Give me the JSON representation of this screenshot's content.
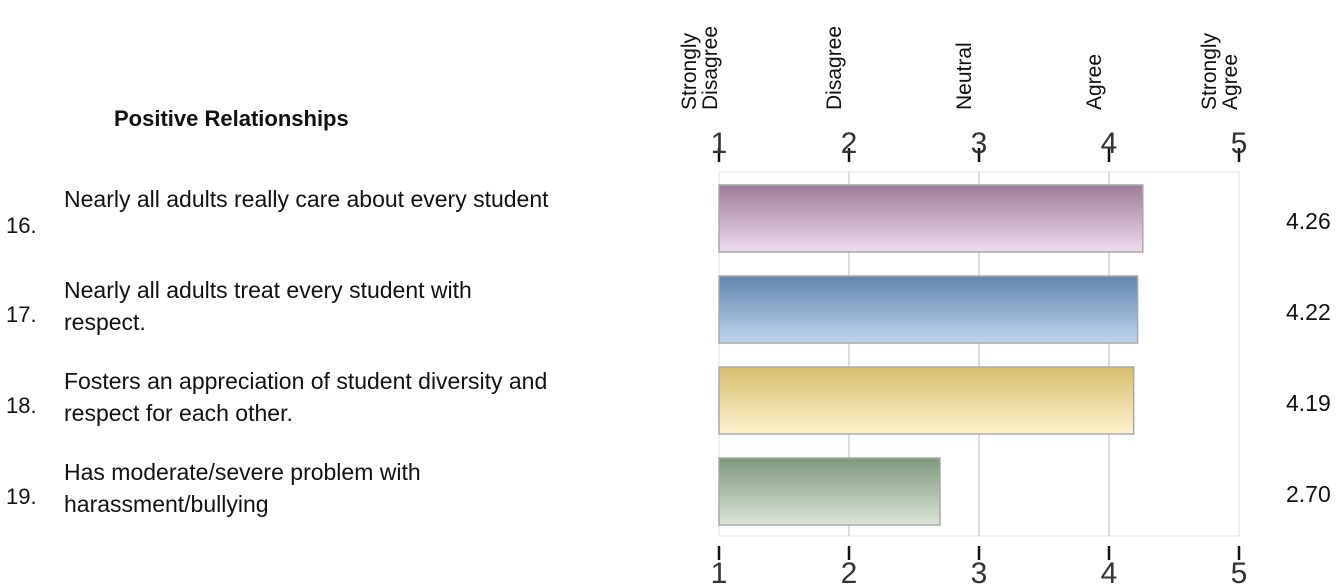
{
  "chart_data": {
    "type": "bar",
    "orientation": "horizontal",
    "title": "Positive Relationships",
    "xlim": [
      1,
      5
    ],
    "x_ticks": [
      1,
      2,
      3,
      4,
      5
    ],
    "scale_labels": [
      "Strongly\nDisagree",
      "Disagree",
      "Neutral",
      "Agree",
      "Strongly\nAgree"
    ],
    "grid": true,
    "categories": [
      "Nearly all adults really care about every student",
      "Nearly all adults treat every student with respect.",
      "Fosters an appreciation of student diversity and respect for each other.",
      "Has moderate/severe problem with harassment/bullying"
    ],
    "category_lines": [
      [
        "Nearly all adults really care about every student"
      ],
      [
        "Nearly all adults treat every student with",
        "respect."
      ],
      [
        "Fosters an appreciation of student diversity and",
        "respect for each other."
      ],
      [
        "Has moderate/severe problem with",
        "harassment/bullying"
      ]
    ],
    "numbers": [
      "16.",
      "17.",
      "18.",
      "19."
    ],
    "values": [
      4.26,
      4.22,
      4.19,
      2.7
    ],
    "value_labels": [
      "4.26",
      "4.22",
      "4.19",
      "2.70"
    ],
    "colors": [
      [
        "#9f7a9a",
        "#efdcef"
      ],
      [
        "#5f86ad",
        "#bdd6ef"
      ],
      [
        "#d8bd6e",
        "#fdf2cc"
      ],
      [
        "#7e987b",
        "#dbe6d8"
      ]
    ]
  }
}
